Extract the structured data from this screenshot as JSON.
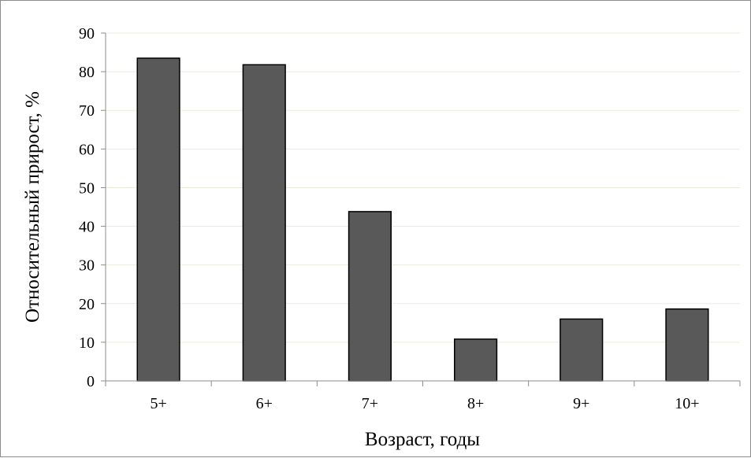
{
  "chart_data": {
    "type": "bar",
    "categories": [
      "5+",
      "6+",
      "7+",
      "8+",
      "9+",
      "10+"
    ],
    "values": [
      83.5,
      81.8,
      43.8,
      10.8,
      16.0,
      18.6
    ],
    "title": "",
    "xlabel": "Возраст, годы",
    "ylabel": "Относительный прирост, %",
    "ylim": [
      0,
      90
    ],
    "yticks": [
      0,
      10,
      20,
      30,
      40,
      50,
      60,
      70,
      80,
      90
    ],
    "grid": true,
    "legend": "none",
    "colors": {
      "bar": "#595959",
      "bar_edge": "#000000",
      "grid": "#ebebdc",
      "axis": "#8c8c8c"
    }
  }
}
